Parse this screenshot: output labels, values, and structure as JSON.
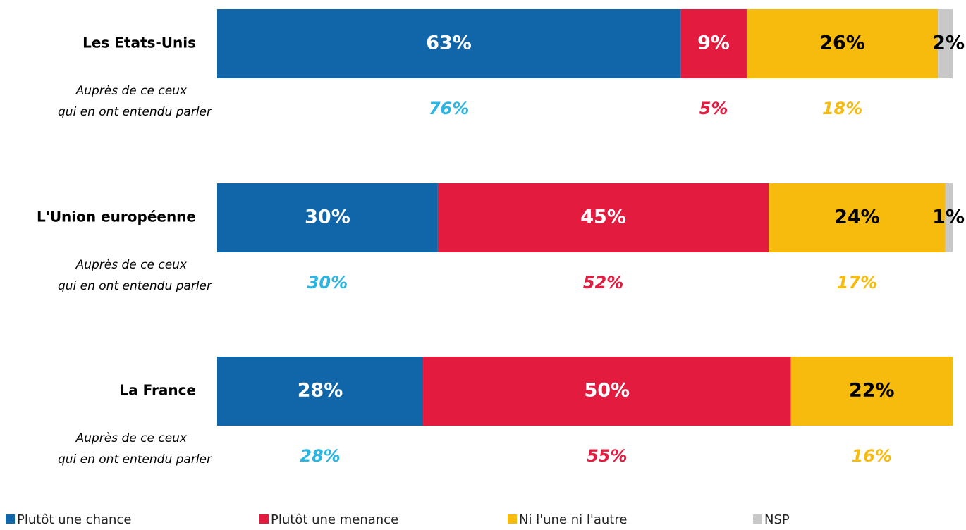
{
  "chart_data": {
    "type": "bar",
    "orientation": "horizontal",
    "stacked": true,
    "categories": [
      "Les Etats-Unis",
      "L'Union européenne",
      "La France"
    ],
    "sub_label": [
      "Auprès de ce ceux",
      "qui en ont entendu parler"
    ],
    "xlim": [
      0,
      100
    ],
    "legend": "bottom",
    "series": [
      {
        "name": "Plutôt une chance",
        "color": "#1066a8",
        "label_color": "#ffffff",
        "sub_color": "#2bb5e0",
        "values": [
          63,
          30,
          28
        ],
        "value_labels": [
          "63%",
          "30%",
          "28%"
        ],
        "sub_values": [
          76,
          30,
          28
        ],
        "sub_value_labels": [
          "76%",
          "30%",
          "28%"
        ]
      },
      {
        "name": "Plutôt une menance",
        "color": "#e31b3f",
        "label_color": "#ffffff",
        "sub_color": "#e31b3f",
        "values": [
          9,
          45,
          50
        ],
        "value_labels": [
          "9%",
          "45%",
          "50%"
        ],
        "sub_values": [
          5,
          52,
          55
        ],
        "sub_value_labels": [
          "5%",
          "52%",
          "55%"
        ]
      },
      {
        "name": "Ni l'une ni l'autre",
        "color": "#f7bb0e",
        "label_color": "#000000",
        "sub_color": "#f7bb0e",
        "values": [
          26,
          24,
          22
        ],
        "value_labels": [
          "26%",
          "24%",
          "22%"
        ],
        "sub_values": [
          18,
          17,
          16
        ],
        "sub_value_labels": [
          "18%",
          "17%",
          "16%"
        ]
      },
      {
        "name": "NSP",
        "color": "#c8c8c8",
        "label_color": "#000000",
        "values": [
          2,
          1,
          null
        ],
        "value_labels": [
          "2%",
          "1%",
          null
        ]
      }
    ]
  }
}
